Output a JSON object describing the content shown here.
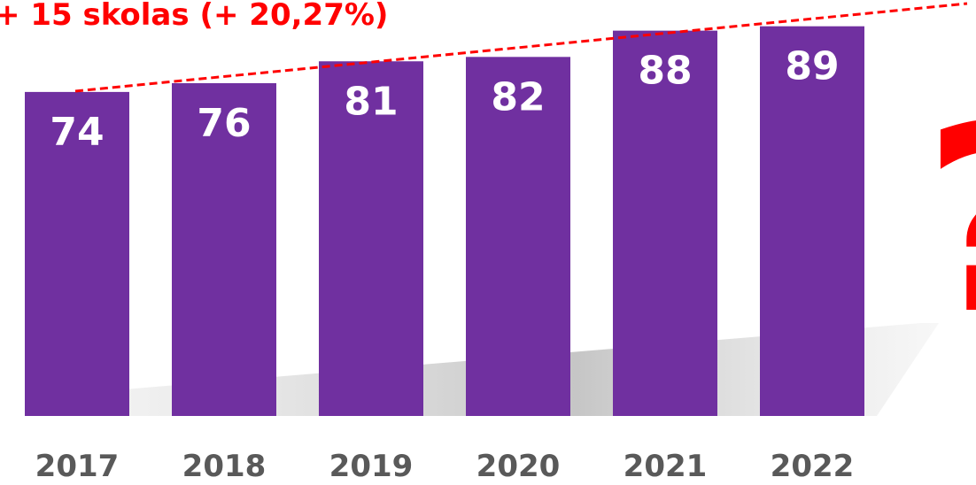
{
  "chart_data": {
    "type": "bar",
    "categories": [
      "2017",
      "2018",
      "2019",
      "2020",
      "2021",
      "2022"
    ],
    "values": [
      74,
      76,
      81,
      82,
      88,
      89
    ],
    "color": "#7030a0",
    "ylim": [
      0,
      95
    ],
    "annotations": [
      "+ 15 skolas (+ 20,27%)",
      "?"
    ]
  }
}
